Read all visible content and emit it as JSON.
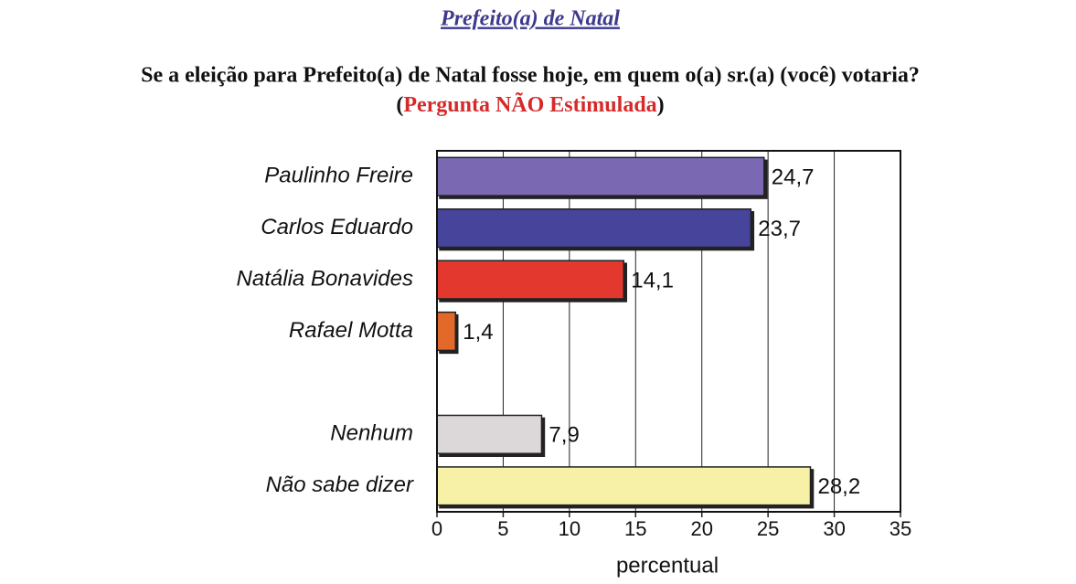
{
  "chart_data": {
    "type": "barh",
    "title": "Prefeito(a) de Natal",
    "subtitle": "Se a eleição para Prefeito(a) de Natal fosse hoje, em quem o(a) sr.(a) (você) votaria?",
    "annotation": [
      "(",
      "Pergunta NÃO Estimulada",
      ")"
    ],
    "categories": [
      "Paulinho Freire",
      "Carlos Eduardo",
      "Natália Bonavides",
      "Rafael Motta",
      null,
      "Nenhum",
      "Não sabe dizer"
    ],
    "values": [
      24.7,
      23.7,
      14.1,
      1.4,
      null,
      7.9,
      28.2
    ],
    "value_labels": [
      "24,7",
      "23,7",
      "14,1",
      "1,4",
      null,
      "7,9",
      "28,2"
    ],
    "colors": [
      "#7a68b3",
      "#47449b",
      "#e3392f",
      "#e2692b",
      null,
      "#dcd7d8",
      "#f6f1a6"
    ],
    "xlabel": "percentual",
    "xlim": [
      0,
      35
    ],
    "xticks": [
      0,
      5,
      10,
      15,
      20,
      25,
      30,
      35
    ],
    "grid": true
  }
}
